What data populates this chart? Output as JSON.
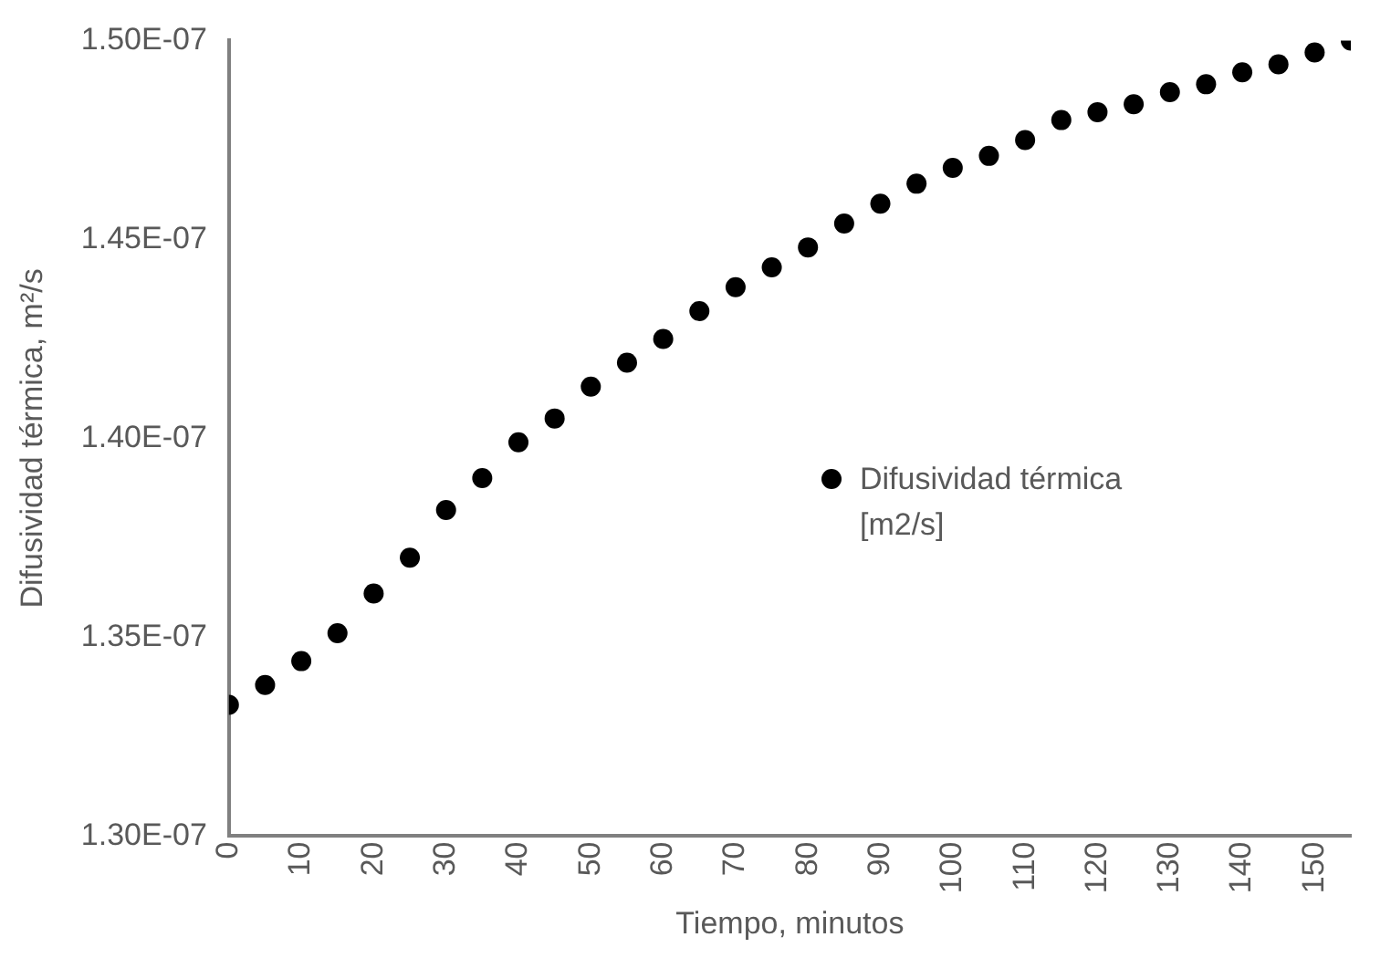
{
  "chart_data": {
    "type": "scatter",
    "xlabel": "Tiempo, minutos",
    "ylabel": "Difusividad térmica, m²/s",
    "x": [
      0,
      5,
      10,
      15,
      20,
      25,
      30,
      35,
      40,
      45,
      50,
      55,
      60,
      65,
      70,
      75,
      80,
      85,
      90,
      95,
      100,
      105,
      110,
      115,
      120,
      125,
      130,
      135,
      140,
      145,
      150,
      155
    ],
    "series": [
      {
        "name": "Difusividad térmica [m2/s]",
        "color": "#000000",
        "values": [
          1.333e-07,
          1.338e-07,
          1.344e-07,
          1.351e-07,
          1.361e-07,
          1.37e-07,
          1.382e-07,
          1.39e-07,
          1.399e-07,
          1.405e-07,
          1.413e-07,
          1.419e-07,
          1.425e-07,
          1.432e-07,
          1.438e-07,
          1.443e-07,
          1.448e-07,
          1.454e-07,
          1.459e-07,
          1.464e-07,
          1.468e-07,
          1.471e-07,
          1.475e-07,
          1.48e-07,
          1.482e-07,
          1.484e-07,
          1.487e-07,
          1.489e-07,
          1.492e-07,
          1.494e-07,
          1.497e-07,
          1.5e-07
        ]
      }
    ],
    "xlim": [
      0,
      155
    ],
    "xticks": [
      0,
      10,
      20,
      30,
      40,
      50,
      60,
      70,
      80,
      90,
      100,
      110,
      120,
      130,
      140,
      150
    ],
    "ylim": [
      1.3e-07,
      1.5e-07
    ],
    "yticks": [
      {
        "value": 1.3e-07,
        "label": "1.30E-07"
      },
      {
        "value": 1.35e-07,
        "label": "1.35E-07"
      },
      {
        "value": 1.4e-07,
        "label": "1.40E-07"
      },
      {
        "value": 1.45e-07,
        "label": "1.45E-07"
      },
      {
        "value": 1.5e-07,
        "label": "1.50E-07"
      }
    ],
    "grid": false,
    "legend": "right",
    "marker": "circle"
  }
}
